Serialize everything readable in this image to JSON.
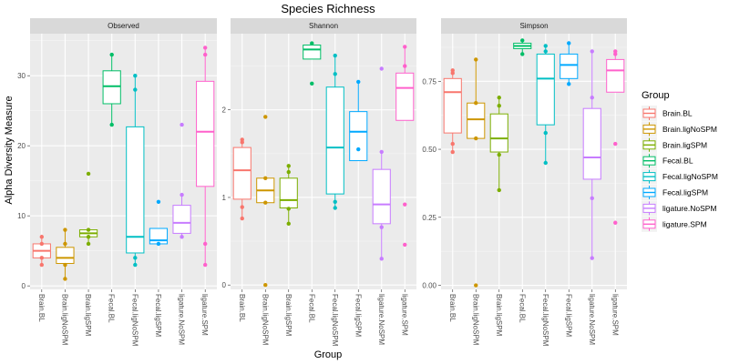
{
  "chart_data": {
    "type": "box",
    "title": "Species Richness",
    "xlabel": "Group",
    "ylabel": "Alpha Diversity Measure",
    "grid": true,
    "legend": {
      "title": "Group",
      "placement": "right",
      "entries": [
        "Brain.BL",
        "Brain.ligNoSPM",
        "Brain.ligSPM",
        "Fecal.BL",
        "Fecal.ligNoSPM",
        "Fecal.ligSPM",
        "ligature.NoSPM",
        "ligature.SPM"
      ]
    },
    "categories": [
      "Brain.BL",
      "Brain.ligNoSPM",
      "Brain.ligSPM",
      "Fecal.BL",
      "Fecal.ligNoSPM",
      "Fecal.ligSPM",
      "ligature.NoSPM",
      "ligature.SPM"
    ],
    "colors": [
      "#F8766D",
      "#CD9600",
      "#7CAE00",
      "#00BE67",
      "#00BFC4",
      "#00A9FF",
      "#C77CFF",
      "#FF61CC"
    ],
    "panels": [
      {
        "name": "Observed",
        "ylim": [
          -0.5,
          36
        ],
        "yticks": [
          0,
          10,
          20,
          30
        ],
        "ytick_labels": [
          "0",
          "10",
          "20",
          "30"
        ],
        "boxes": [
          {
            "q1": 4,
            "median": 5,
            "q3": 6,
            "whisker_low": 3,
            "whisker_high": 7,
            "points": [
              3,
              4,
              6,
              7
            ]
          },
          {
            "q1": 3.2,
            "median": 4,
            "q3": 5.5,
            "whisker_low": 1,
            "whisker_high": 8,
            "points": [
              1,
              3,
              6,
              8
            ]
          },
          {
            "q1": 7,
            "median": 7.5,
            "q3": 8,
            "whisker_low": 6,
            "whisker_high": 8,
            "points": [
              6,
              7,
              8,
              16
            ]
          },
          {
            "q1": 26,
            "median": 28.5,
            "q3": 30.7,
            "whisker_low": 23,
            "whisker_high": 33,
            "points": [
              23,
              33
            ]
          },
          {
            "q1": 4.7,
            "median": 7,
            "q3": 22.7,
            "whisker_low": 3,
            "whisker_high": 30,
            "points": [
              3,
              4,
              28,
              30
            ]
          },
          {
            "q1": 6,
            "median": 6.5,
            "q3": 8.2,
            "whisker_low": 6,
            "whisker_high": 8.2,
            "points": [
              6,
              12
            ]
          },
          {
            "q1": 7.5,
            "median": 9,
            "q3": 11.5,
            "whisker_low": 7,
            "whisker_high": 13,
            "points": [
              7,
              13,
              23
            ]
          },
          {
            "q1": 14.2,
            "median": 22,
            "q3": 29.2,
            "whisker_low": 3,
            "whisker_high": 34,
            "points": [
              3,
              6,
              33,
              34
            ]
          }
        ]
      },
      {
        "name": "Shannon",
        "ylim": [
          -0.05,
          2.87
        ],
        "yticks": [
          0,
          1,
          2
        ],
        "ytick_labels": [
          "0",
          "1",
          "2"
        ],
        "boxes": [
          {
            "q1": 0.98,
            "median": 1.31,
            "q3": 1.57,
            "whisker_low": 0.76,
            "whisker_high": 1.66,
            "points": [
              0.76,
              0.89,
              1.63,
              1.66
            ]
          },
          {
            "q1": 0.94,
            "median": 1.08,
            "q3": 1.22,
            "whisker_low": 0.94,
            "whisker_high": 1.22,
            "points": [
              0,
              0.94,
              1.22,
              1.92
            ]
          },
          {
            "q1": 0.88,
            "median": 0.97,
            "q3": 1.22,
            "whisker_low": 0.7,
            "whisker_high": 1.36,
            "points": [
              0.7,
              0.87,
              1.29,
              1.36
            ]
          },
          {
            "q1": 2.58,
            "median": 2.69,
            "q3": 2.74,
            "whisker_low": 2.58,
            "whisker_high": 2.76,
            "points": [
              2.3,
              2.76
            ]
          },
          {
            "q1": 1.04,
            "median": 1.57,
            "q3": 2.26,
            "whisker_low": 0.88,
            "whisker_high": 2.62,
            "points": [
              0.88,
              0.95,
              2.41,
              2.62
            ]
          },
          {
            "q1": 1.42,
            "median": 1.75,
            "q3": 1.98,
            "whisker_low": 1.55,
            "whisker_high": 2.32,
            "points": [
              1.55,
              2.32
            ]
          },
          {
            "q1": 0.7,
            "median": 0.92,
            "q3": 1.32,
            "whisker_low": 0.3,
            "whisker_high": 1.52,
            "points": [
              0.3,
              0.66,
              1.52,
              2.47
            ]
          },
          {
            "q1": 1.88,
            "median": 2.25,
            "q3": 2.42,
            "whisker_low": 1.88,
            "whisker_high": 2.72,
            "points": [
              0.46,
              0.92,
              2.5,
              2.72
            ]
          }
        ]
      },
      {
        "name": "Simpson",
        "ylim": [
          -0.015,
          0.925
        ],
        "yticks": [
          0,
          0.25,
          0.5,
          0.75
        ],
        "ytick_labels": [
          "0.00",
          "0.25",
          "0.50",
          "0.75"
        ],
        "boxes": [
          {
            "q1": 0.56,
            "median": 0.71,
            "q3": 0.76,
            "whisker_low": 0.49,
            "whisker_high": 0.79,
            "points": [
              0.49,
              0.52,
              0.78,
              0.79
            ]
          },
          {
            "q1": 0.54,
            "median": 0.61,
            "q3": 0.67,
            "whisker_low": 0.54,
            "whisker_high": 0.83,
            "points": [
              0,
              0.54,
              0.67,
              0.83
            ]
          },
          {
            "q1": 0.49,
            "median": 0.54,
            "q3": 0.63,
            "whisker_low": 0.35,
            "whisker_high": 0.69,
            "points": [
              0.35,
              0.48,
              0.66,
              0.69
            ]
          },
          {
            "q1": 0.87,
            "median": 0.88,
            "q3": 0.89,
            "whisker_low": 0.85,
            "whisker_high": 0.9,
            "points": [
              0.85,
              0.9
            ]
          },
          {
            "q1": 0.59,
            "median": 0.76,
            "q3": 0.85,
            "whisker_low": 0.45,
            "whisker_high": 0.88,
            "points": [
              0.45,
              0.56,
              0.86,
              0.88
            ]
          },
          {
            "q1": 0.76,
            "median": 0.81,
            "q3": 0.85,
            "whisker_low": 0.74,
            "whisker_high": 0.89,
            "points": [
              0.74,
              0.89
            ]
          },
          {
            "q1": 0.39,
            "median": 0.47,
            "q3": 0.65,
            "whisker_low": 0.1,
            "whisker_high": 0.86,
            "points": [
              0.1,
              0.32,
              0.69,
              0.86
            ]
          },
          {
            "q1": 0.71,
            "median": 0.79,
            "q3": 0.83,
            "whisker_low": 0.71,
            "whisker_high": 0.86,
            "points": [
              0.23,
              0.52,
              0.85,
              0.86
            ]
          }
        ]
      }
    ]
  }
}
